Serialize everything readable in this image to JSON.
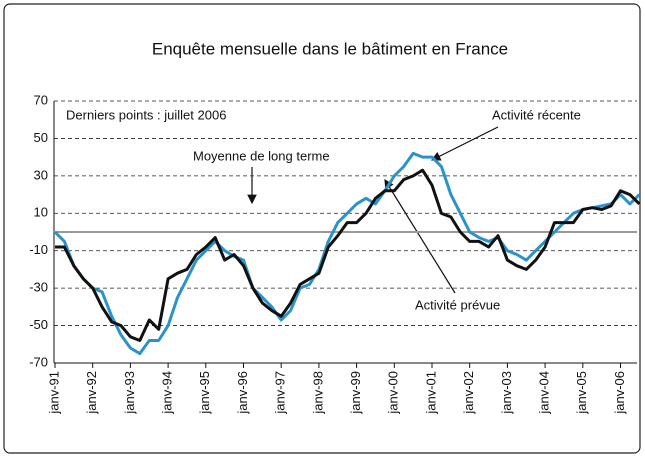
{
  "chart_data": {
    "type": "line",
    "title": "Enquête mensuelle dans le bâtiment en France",
    "annotations": [
      "Derniers points : juillet 2006",
      "Activité récente",
      "Moyenne de long terme",
      "Activité prévue"
    ],
    "categories": [
      "janv-91",
      null,
      null,
      null,
      "janv-92",
      null,
      null,
      null,
      "janv-93",
      null,
      null,
      null,
      "janv-94",
      null,
      null,
      null,
      "janv-95",
      null,
      null,
      null,
      "janv-96",
      null,
      null,
      null,
      "janv-97",
      null,
      null,
      null,
      "janv-98",
      null,
      null,
      null,
      "janv-99",
      null,
      null,
      null,
      "janv-00",
      null,
      null,
      null,
      "janv-01",
      null,
      null,
      null,
      "janv-02",
      null,
      null,
      null,
      "janv-03",
      null,
      null,
      null,
      "janv-04",
      null,
      null,
      null,
      "janv-05",
      null,
      null,
      null,
      "janv-06",
      null,
      null
    ],
    "series": [
      {
        "name": "Activité récente",
        "color": "#2a93c9",
        "values": [
          0,
          -5,
          -18,
          -25,
          -30,
          -32,
          -45,
          -55,
          -62,
          -65,
          -58,
          -58,
          -50,
          -35,
          -25,
          -15,
          -10,
          -5,
          -10,
          -13,
          -15,
          -30,
          -35,
          -40,
          -47,
          -42,
          -30,
          -28,
          -20,
          -5,
          5,
          10,
          15,
          18,
          15,
          22,
          30,
          35,
          42,
          40,
          40,
          35,
          20,
          10,
          0,
          -3,
          -5,
          -3,
          -10,
          -12,
          -15,
          -10,
          -5,
          0,
          5,
          10,
          12,
          13,
          14,
          15,
          20,
          15,
          20
        ]
      },
      {
        "name": "Activité prévue",
        "color": "#111111",
        "values": [
          -8,
          -8,
          -18,
          -25,
          -30,
          -40,
          -48,
          -50,
          -56,
          -58,
          -47,
          -52,
          -25,
          -22,
          -20,
          -12,
          -8,
          -3,
          -15,
          -12,
          -18,
          -30,
          -38,
          -42,
          -45,
          -38,
          -28,
          -25,
          -22,
          -8,
          -2,
          5,
          5,
          10,
          18,
          22,
          22,
          28,
          30,
          33,
          25,
          10,
          8,
          0,
          -5,
          -5,
          -8,
          -2,
          -15,
          -18,
          -20,
          -15,
          -8,
          5,
          5,
          5,
          12,
          13,
          12,
          14,
          22,
          20,
          15
        ]
      }
    ],
    "ylim": [
      -70,
      70
    ],
    "yticks": [
      -70,
      -50,
      -30,
      -10,
      10,
      30,
      50,
      70
    ],
    "hline": 0,
    "grid": true
  }
}
